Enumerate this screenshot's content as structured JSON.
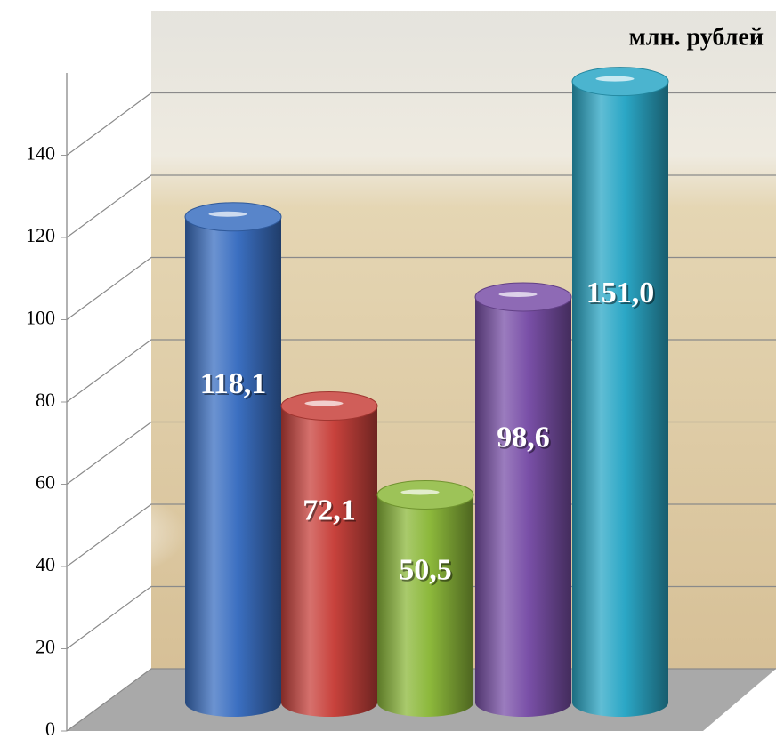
{
  "chart_data": {
    "type": "bar",
    "subtitle": "млн. рублей",
    "series": [
      {
        "color": "#3b6fc1",
        "values": [
          118.1
        ],
        "value_labels": [
          "118,1"
        ]
      },
      {
        "color": "#c8423c",
        "values": [
          72.1
        ],
        "value_labels": [
          "72,1"
        ]
      },
      {
        "color": "#8cb83b",
        "values": [
          50.5
        ],
        "value_labels": [
          "50,5"
        ]
      },
      {
        "color": "#7a50a8",
        "values": [
          98.6
        ],
        "value_labels": [
          "98,6"
        ]
      },
      {
        "color": "#2ba7c6",
        "values": [
          151.0
        ],
        "value_labels": [
          "151,0"
        ]
      }
    ],
    "ylim": [
      0,
      160
    ],
    "yticks": [
      0,
      20,
      40,
      60,
      80,
      100,
      120,
      140
    ],
    "grid": true
  }
}
